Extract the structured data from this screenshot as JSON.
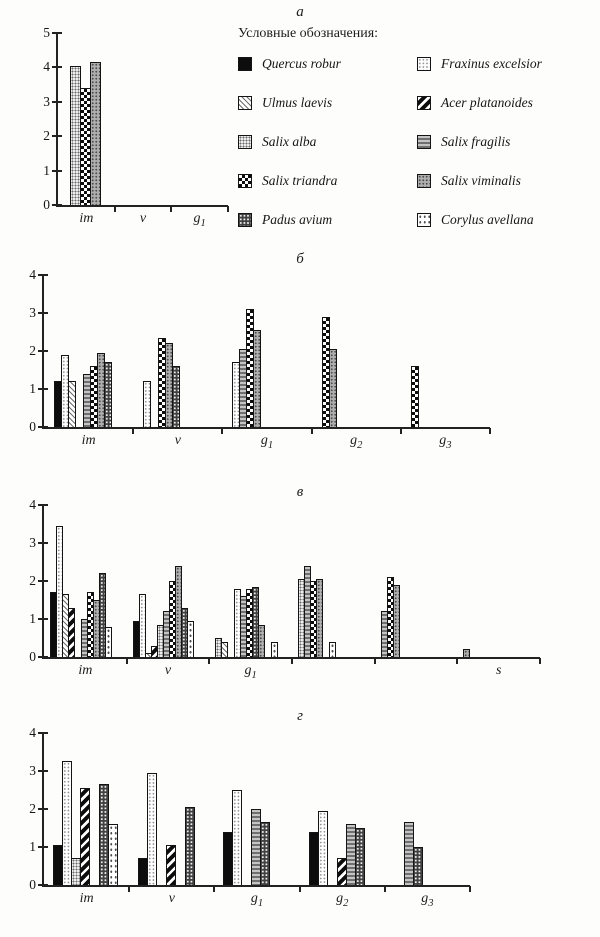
{
  "legend": {
    "title": "Условные обозначения:",
    "items": [
      {
        "name": "Quercus robur",
        "pattern": "quercus"
      },
      {
        "name": "Fraxinus excelsior",
        "pattern": "fraxinus"
      },
      {
        "name": "Ulmus laevis",
        "pattern": "ulmus"
      },
      {
        "name": "Acer platanoides",
        "pattern": "acer"
      },
      {
        "name": "Salix alba",
        "pattern": "alba"
      },
      {
        "name": "Salix fragilis",
        "pattern": "fragilis"
      },
      {
        "name": "Salix triandra",
        "pattern": "triandra"
      },
      {
        "name": "Salix viminalis",
        "pattern": "viminalis"
      },
      {
        "name": "Padus avium",
        "pattern": "padus"
      },
      {
        "name": "Corylus avellana",
        "pattern": "corylus"
      }
    ]
  },
  "chart_data": [
    {
      "type": "bar",
      "panel_label": "а",
      "xlabel": "",
      "ylabel": "",
      "ylim": [
        0,
        5
      ],
      "yticks": [
        0,
        1,
        2,
        3,
        4,
        5
      ],
      "grid": false,
      "groups": [
        {
          "label": "im",
          "sub": "",
          "bars": [
            {
              "species": "Salix alba",
              "pattern": "alba",
              "value": 4.05
            },
            {
              "species": "Salix triandra",
              "pattern": "triandra",
              "value": 3.4
            },
            {
              "species": "Salix viminalis",
              "pattern": "viminalis",
              "value": 4.15
            }
          ]
        },
        {
          "label": "v",
          "sub": "",
          "bars": []
        },
        {
          "label": "g",
          "sub": "1",
          "bars": []
        }
      ]
    },
    {
      "type": "bar",
      "panel_label": "б",
      "xlabel": "",
      "ylabel": "",
      "ylim": [
        0,
        4
      ],
      "yticks": [
        0,
        1,
        2,
        3,
        4
      ],
      "grid": false,
      "groups": [
        {
          "label": "im",
          "sub": "",
          "bars": [
            {
              "species": "Quercus robur",
              "pattern": "quercus",
              "value": 1.2
            },
            {
              "species": "Fraxinus excelsior",
              "pattern": "fraxinus",
              "value": 1.9
            },
            {
              "species": "Ulmus laevis",
              "pattern": "ulmus",
              "value": 1.2
            },
            {
              "gap": true
            },
            {
              "species": "Salix fragilis",
              "pattern": "fragilis",
              "value": 1.4
            },
            {
              "species": "Salix triandra",
              "pattern": "triandra",
              "value": 1.6
            },
            {
              "species": "Salix viminalis",
              "pattern": "viminalis",
              "value": 1.95
            },
            {
              "species": "Padus avium",
              "pattern": "padus",
              "value": 1.7
            }
          ]
        },
        {
          "label": "v",
          "sub": "",
          "bars": [
            {
              "species": "Fraxinus excelsior",
              "pattern": "fraxinus",
              "value": 1.2
            },
            {
              "gap": true
            },
            {
              "species": "Salix triandra",
              "pattern": "triandra",
              "value": 2.35
            },
            {
              "species": "Salix viminalis",
              "pattern": "viminalis",
              "value": 2.2
            },
            {
              "species": "Padus avium",
              "pattern": "padus",
              "value": 1.6
            }
          ]
        },
        {
          "label": "g",
          "sub": "1",
          "bars": [
            {
              "species": "Fraxinus excelsior",
              "pattern": "fraxinus",
              "value": 1.7
            },
            {
              "species": "Salix fragilis",
              "pattern": "fragilis",
              "value": 2.05
            },
            {
              "species": "Salix triandra",
              "pattern": "triandra",
              "value": 3.1
            },
            {
              "species": "Salix viminalis",
              "pattern": "viminalis",
              "value": 2.55
            }
          ]
        },
        {
          "label": "g",
          "sub": "2",
          "bars": [
            {
              "species": "Salix triandra",
              "pattern": "triandra",
              "value": 2.9
            },
            {
              "species": "Salix viminalis",
              "pattern": "viminalis",
              "value": 2.05
            }
          ]
        },
        {
          "label": "g",
          "sub": "3",
          "bars": [
            {
              "species": "Salix triandra",
              "pattern": "triandra",
              "value": 1.6
            }
          ]
        }
      ]
    },
    {
      "type": "bar",
      "panel_label": "в",
      "xlabel": "",
      "ylabel": "",
      "ylim": [
        0,
        4
      ],
      "yticks": [
        0,
        1,
        2,
        3,
        4
      ],
      "grid": false,
      "groups": [
        {
          "label": "im",
          "sub": "",
          "bars": [
            {
              "species": "Quercus robur",
              "pattern": "quercus",
              "value": 1.7
            },
            {
              "species": "Fraxinus excelsior",
              "pattern": "fraxinus",
              "value": 3.45
            },
            {
              "species": "Ulmus laevis",
              "pattern": "ulmus",
              "value": 1.65
            },
            {
              "species": "Acer platanoides",
              "pattern": "acer",
              "value": 1.3
            },
            {
              "gap": true
            },
            {
              "species": "Salix fragilis",
              "pattern": "fragilis",
              "value": 1.0
            },
            {
              "species": "Salix triandra",
              "pattern": "triandra",
              "value": 1.7
            },
            {
              "species": "Salix viminalis",
              "pattern": "viminalis",
              "value": 1.5
            },
            {
              "species": "Padus avium",
              "pattern": "padus",
              "value": 2.2
            },
            {
              "species": "Corylus avellana",
              "pattern": "corylus",
              "value": 0.8
            }
          ]
        },
        {
          "label": "v",
          "sub": "",
          "bars": [
            {
              "species": "Quercus robur",
              "pattern": "quercus",
              "value": 0.95
            },
            {
              "species": "Fraxinus excelsior",
              "pattern": "fraxinus",
              "value": 1.65
            },
            {
              "species": "Ulmus laevis",
              "pattern": "ulmus",
              "value": 0.1
            },
            {
              "species": "Acer platanoides",
              "pattern": "acer",
              "value": 0.3
            },
            {
              "species": "Salix alba",
              "pattern": "alba",
              "value": 0.85
            },
            {
              "species": "Salix fragilis",
              "pattern": "fragilis",
              "value": 1.2
            },
            {
              "species": "Salix triandra",
              "pattern": "triandra",
              "value": 2.0
            },
            {
              "species": "Salix viminalis",
              "pattern": "viminalis",
              "value": 2.4
            },
            {
              "species": "Padus avium",
              "pattern": "padus",
              "value": 1.3
            },
            {
              "species": "Corylus avellana",
              "pattern": "corylus",
              "value": 0.95
            }
          ]
        },
        {
          "label": "g",
          "sub": "1",
          "bars": [
            {
              "species": "Salix alba",
              "pattern": "alba",
              "value": 0.5
            },
            {
              "species": "Ulmus laevis",
              "pattern": "ulmus",
              "value": 0.4
            },
            {
              "gap": true
            },
            {
              "species": "Fraxinus excelsior",
              "pattern": "fraxinus",
              "value": 1.8
            },
            {
              "species": "Salix fragilis",
              "pattern": "fragilis",
              "value": 1.6
            },
            {
              "species": "Salix triandra",
              "pattern": "triandra",
              "value": 1.8
            },
            {
              "species": "Padus avium",
              "pattern": "padus",
              "value": 1.85
            },
            {
              "species": "Salix viminalis",
              "pattern": "viminalis",
              "value": 0.85
            },
            {
              "gap": true
            },
            {
              "species": "Corylus avellana",
              "pattern": "corylus",
              "value": 0.4
            }
          ]
        },
        {
          "label": "",
          "sub": "",
          "bars": [
            {
              "species": "Salix alba",
              "pattern": "alba",
              "value": 2.05
            },
            {
              "species": "Salix fragilis",
              "pattern": "fragilis",
              "value": 2.4
            },
            {
              "species": "Salix triandra",
              "pattern": "triandra",
              "value": 2.0
            },
            {
              "species": "Salix viminalis",
              "pattern": "viminalis",
              "value": 2.05
            },
            {
              "gap": true
            },
            {
              "species": "Corylus avellana",
              "pattern": "corylus",
              "value": 0.4
            }
          ]
        },
        {
          "label": "",
          "sub": "",
          "bars": [
            {
              "species": "Salix fragilis",
              "pattern": "fragilis",
              "value": 1.2
            },
            {
              "species": "Salix triandra",
              "pattern": "triandra",
              "value": 2.1
            },
            {
              "species": "Salix viminalis",
              "pattern": "viminalis",
              "value": 1.9
            }
          ]
        },
        {
          "label": "s",
          "sub": "",
          "bars": [
            {
              "species": "Salix viminalis",
              "pattern": "viminalis",
              "value": 0.2
            }
          ]
        }
      ]
    },
    {
      "type": "bar",
      "panel_label": "г",
      "xlabel": "",
      "ylabel": "",
      "ylim": [
        0,
        4
      ],
      "yticks": [
        0,
        1,
        2,
        3,
        4
      ],
      "grid": false,
      "groups": [
        {
          "label": "im",
          "sub": "",
          "bars": [
            {
              "species": "Quercus robur",
              "pattern": "quercus",
              "value": 1.05
            },
            {
              "species": "Fraxinus excelsior",
              "pattern": "fraxinus",
              "value": 3.25
            },
            {
              "species": "Salix alba",
              "pattern": "alba",
              "value": 0.7
            },
            {
              "species": "Acer platanoides",
              "pattern": "acer",
              "value": 2.55
            },
            {
              "gap": true
            },
            {
              "species": "Padus avium",
              "pattern": "padus",
              "value": 2.65
            },
            {
              "species": "Corylus avellana",
              "pattern": "corylus",
              "value": 1.6
            }
          ]
        },
        {
          "label": "v",
          "sub": "",
          "bars": [
            {
              "species": "Quercus robur",
              "pattern": "quercus",
              "value": 0.7
            },
            {
              "species": "Fraxinus excelsior",
              "pattern": "fraxinus",
              "value": 2.95
            },
            {
              "gap": true
            },
            {
              "species": "Acer platanoides",
              "pattern": "acer",
              "value": 1.05
            },
            {
              "gap": true
            },
            {
              "species": "Padus avium",
              "pattern": "padus",
              "value": 2.05
            }
          ]
        },
        {
          "label": "g",
          "sub": "1",
          "bars": [
            {
              "species": "Quercus robur",
              "pattern": "quercus",
              "value": 1.4
            },
            {
              "species": "Fraxinus excelsior",
              "pattern": "fraxinus",
              "value": 2.5
            },
            {
              "gap": true
            },
            {
              "species": "Salix fragilis",
              "pattern": "fragilis",
              "value": 2.0
            },
            {
              "species": "Padus avium",
              "pattern": "padus",
              "value": 1.65
            }
          ]
        },
        {
          "label": "g",
          "sub": "2",
          "bars": [
            {
              "species": "Quercus robur",
              "pattern": "quercus",
              "value": 1.4
            },
            {
              "species": "Fraxinus excelsior",
              "pattern": "fraxinus",
              "value": 1.95
            },
            {
              "gap": true
            },
            {
              "species": "Acer platanoides",
              "pattern": "acer",
              "value": 0.7
            },
            {
              "species": "Salix fragilis",
              "pattern": "fragilis",
              "value": 1.6
            },
            {
              "species": "Padus avium",
              "pattern": "padus",
              "value": 1.5
            }
          ]
        },
        {
          "label": "g",
          "sub": "3",
          "bars": [
            {
              "gap": true
            },
            {
              "species": "Salix fragilis",
              "pattern": "fragilis",
              "value": 1.65
            },
            {
              "species": "Padus avium",
              "pattern": "padus",
              "value": 1.0
            }
          ]
        }
      ]
    }
  ]
}
